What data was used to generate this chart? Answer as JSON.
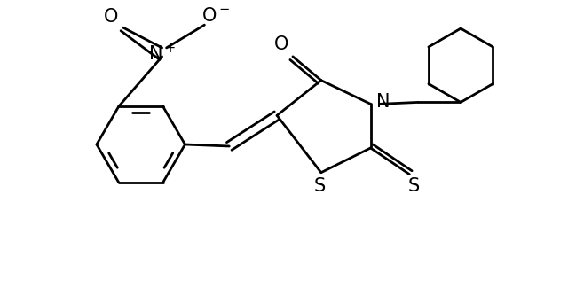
{
  "background_color": "#ffffff",
  "line_color": "#000000",
  "line_width": 2.0,
  "figsize": [
    6.4,
    3.25
  ],
  "dpi": 100,
  "xlim": [
    0,
    6.4
  ],
  "ylim": [
    0,
    3.25
  ]
}
